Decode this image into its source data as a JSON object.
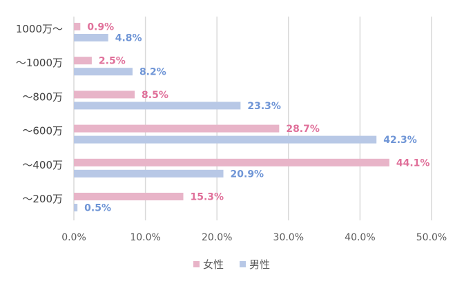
{
  "chart_data": {
    "type": "bar",
    "orientation": "horizontal",
    "categories": [
      "1000万〜",
      "〜1000万",
      "〜800万",
      "〜600万",
      "〜400万",
      "〜200万"
    ],
    "series": [
      {
        "name": "女性",
        "color": "#e8b4c8",
        "label_color": "#e0709a",
        "values": [
          0.9,
          2.5,
          8.5,
          28.7,
          44.1,
          15.3
        ]
      },
      {
        "name": "男性",
        "color": "#b8c8e6",
        "label_color": "#6f95d6",
        "values": [
          4.8,
          8.2,
          23.3,
          42.3,
          20.9,
          0.5
        ]
      }
    ],
    "data_labels": [
      [
        "0.9%",
        "2.5%",
        "8.5%",
        "28.7%",
        "44.1%",
        "15.3%"
      ],
      [
        "4.8%",
        "8.2%",
        "23.3%",
        "42.3%",
        "20.9%",
        "0.5%"
      ]
    ],
    "xlim": [
      0,
      50
    ],
    "xticks": [
      0,
      10,
      20,
      30,
      40,
      50
    ],
    "xtick_labels": [
      "0.0%",
      "10.0%",
      "20.0%",
      "30.0%",
      "40.0%",
      "50.0%"
    ],
    "grid": true,
    "legend": "bottom-center",
    "title": "",
    "xlabel": "",
    "ylabel": ""
  }
}
